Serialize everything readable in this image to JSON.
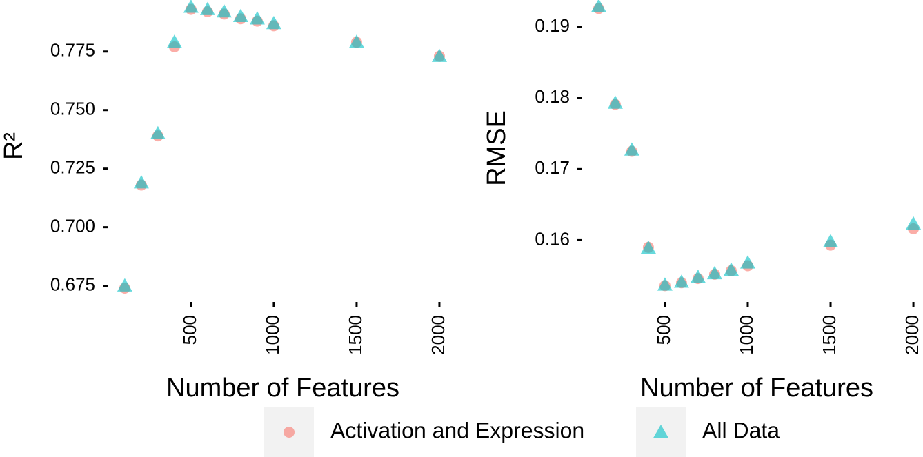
{
  "chart_data": [
    {
      "type": "scatter",
      "ylabel": "R²",
      "xlabel": "Number of Features",
      "x": [
        100,
        200,
        300,
        400,
        500,
        600,
        700,
        800,
        900,
        1000,
        1500,
        2000
      ],
      "series": [
        {
          "name": "Activation and Expression",
          "color": "#F8766D",
          "marker": "circle",
          "values": [
            0.674,
            0.718,
            0.739,
            0.777,
            0.793,
            0.792,
            0.791,
            0.789,
            0.788,
            0.786,
            0.779,
            0.773
          ]
        },
        {
          "name": "All Data",
          "color": "#00BFC4",
          "marker": "triangle",
          "values": [
            0.675,
            0.719,
            0.74,
            0.779,
            0.794,
            0.793,
            0.792,
            0.79,
            0.789,
            0.787,
            0.779,
            0.773
          ]
        }
      ],
      "xlim": [
        13,
        2096
      ],
      "ylim": [
        0.669,
        0.797
      ],
      "xticks": [
        500,
        1000,
        1500,
        2000
      ],
      "yticks": [
        0.675,
        {
          "value": 0.7,
          "label": "0.700"
        },
        0.725,
        {
          "value": 0.75,
          "label": "0.750"
        },
        0.775
      ],
      "legend": "bottom"
    },
    {
      "type": "scatter",
      "ylabel": "RMSE",
      "xlabel": "Number of Features",
      "x": [
        100,
        200,
        300,
        400,
        500,
        600,
        700,
        800,
        900,
        1000,
        1500,
        2000
      ],
      "series": [
        {
          "color": "#F8766D",
          "marker": "circle",
          "values": [
            0.1926,
            0.1791,
            0.1725,
            0.159,
            0.1536,
            0.154,
            0.1546,
            0.1552,
            0.1557,
            0.1564,
            0.1593,
            0.1616
          ]
        },
        {
          "color": "#00BFC4",
          "marker": "triangle",
          "values": [
            0.1929,
            0.1793,
            0.1727,
            0.1589,
            0.1537,
            0.1541,
            0.1548,
            0.1553,
            0.1558,
            0.1568,
            0.1598,
            0.1623
          ]
        }
      ],
      "xlim": [
        13,
        2058
      ],
      "ylim": [
        0.1516,
        0.1938
      ],
      "xticks": [
        500,
        1000,
        1500,
        2000
      ],
      "yticks": [
        0.16,
        0.17,
        0.18,
        0.19
      ]
    }
  ]
}
